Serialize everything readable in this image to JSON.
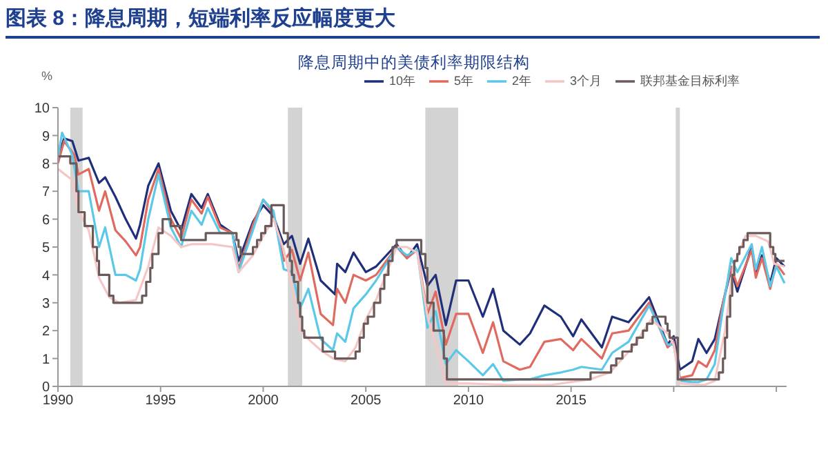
{
  "chart_data": {
    "type": "line",
    "title": "图表 8：降息周期，短端利率反应幅度更大",
    "subtitle": "降息周期中的美债利率期限结构",
    "ylabel": "%",
    "xlim": [
      1990,
      2025.5
    ],
    "xticks": [
      1990,
      1995,
      2000,
      2005,
      2010,
      2015,
      {
        "value": 2020,
        "label": null
      },
      {
        "value": 2025,
        "label": null
      }
    ],
    "ylim": [
      0,
      10
    ],
    "yticks": [
      0,
      1,
      2,
      3,
      4,
      5,
      6,
      7,
      8,
      9,
      10
    ],
    "grid": false,
    "legend": "top",
    "marker": "none",
    "line_style": "solid",
    "bands": [
      {
        "axis": "x",
        "from": 1990.6,
        "to": 1991.2,
        "color": "#d3d3d3"
      },
      {
        "axis": "x",
        "from": 2001.2,
        "to": 2001.9,
        "color": "#d3d3d3"
      },
      {
        "axis": "x",
        "from": 2007.9,
        "to": 2009.5,
        "color": "#d3d3d3"
      },
      {
        "axis": "x",
        "from": 2020.1,
        "to": 2020.3,
        "color": "#d3d3d3"
      }
    ],
    "series": [
      {
        "name": "10年",
        "color": "#1f2f7a",
        "x": [
          1990.0,
          1990.3,
          1990.7,
          1991.0,
          1991.5,
          1992.0,
          1992.3,
          1992.8,
          1993.3,
          1993.8,
          1994.0,
          1994.4,
          1994.9,
          1995.5,
          1996.0,
          1996.5,
          1997.0,
          1997.3,
          1997.9,
          1998.5,
          1998.8,
          1999.5,
          2000.0,
          2000.5,
          2001.0,
          2001.4,
          2001.8,
          2002.2,
          2002.8,
          2003.5,
          2003.6,
          2004.0,
          2004.4,
          2005.0,
          2005.5,
          2006.5,
          2007.0,
          2007.5,
          2008.0,
          2008.4,
          2008.9,
          2009.4,
          2010.0,
          2010.7,
          2011.2,
          2011.7,
          2012.5,
          2013.0,
          2013.7,
          2014.5,
          2015.1,
          2015.5,
          2016.5,
          2017.0,
          2017.8,
          2018.8,
          2019.7,
          2020.0,
          2020.3,
          2020.9,
          2021.2,
          2021.6,
          2022.0,
          2022.4,
          2022.8,
          2023.1,
          2023.8,
          2024.0,
          2024.3,
          2024.7,
          2025.0,
          2025.4
        ],
        "values": [
          8.2,
          8.9,
          8.8,
          8.1,
          8.2,
          7.3,
          7.5,
          6.8,
          6.0,
          5.3,
          5.8,
          7.2,
          8.0,
          6.3,
          5.6,
          6.9,
          6.4,
          6.9,
          5.8,
          5.5,
          4.5,
          5.9,
          6.5,
          6.1,
          5.1,
          5.4,
          4.4,
          5.3,
          3.8,
          3.3,
          4.4,
          4.1,
          4.8,
          4.1,
          4.3,
          5.1,
          4.6,
          5.1,
          3.6,
          4.0,
          2.2,
          3.8,
          3.8,
          2.5,
          3.5,
          2.0,
          1.5,
          1.9,
          2.9,
          2.5,
          1.8,
          2.4,
          1.4,
          2.5,
          2.3,
          3.2,
          1.5,
          1.8,
          0.6,
          0.9,
          1.7,
          1.2,
          1.7,
          3.0,
          4.2,
          3.4,
          5.0,
          4.0,
          4.7,
          3.7,
          4.6,
          4.3
        ]
      },
      {
        "name": "5年",
        "color": "#e06a5f",
        "x": [
          1990.0,
          1990.3,
          1990.8,
          1991.0,
          1991.5,
          1992.0,
          1992.3,
          1992.8,
          1993.3,
          1993.8,
          1994.0,
          1994.4,
          1994.9,
          1995.5,
          1996.0,
          1996.5,
          1997.0,
          1997.3,
          1997.9,
          1998.5,
          1998.8,
          1999.5,
          2000.0,
          2000.5,
          2001.0,
          2001.4,
          2001.8,
          2002.2,
          2002.8,
          2003.4,
          2003.6,
          2004.0,
          2004.4,
          2005.0,
          2005.5,
          2006.5,
          2007.0,
          2007.5,
          2008.0,
          2008.4,
          2008.9,
          2009.4,
          2010.0,
          2010.7,
          2011.2,
          2011.7,
          2012.5,
          2013.0,
          2013.7,
          2014.5,
          2015.1,
          2015.5,
          2016.5,
          2017.0,
          2017.8,
          2018.8,
          2019.7,
          2020.0,
          2020.3,
          2020.9,
          2021.2,
          2021.6,
          2022.0,
          2022.4,
          2022.8,
          2023.1,
          2023.8,
          2024.0,
          2024.3,
          2024.7,
          2025.0,
          2025.4
        ],
        "values": [
          8.0,
          8.8,
          8.3,
          7.6,
          7.8,
          6.3,
          7.0,
          5.6,
          5.2,
          4.7,
          5.0,
          6.7,
          7.8,
          6.0,
          5.3,
          6.7,
          6.2,
          6.8,
          5.7,
          5.5,
          4.2,
          5.8,
          6.7,
          6.2,
          4.5,
          4.9,
          3.8,
          4.8,
          2.6,
          2.2,
          3.5,
          3.0,
          4.0,
          3.8,
          4.0,
          5.0,
          4.6,
          4.9,
          2.6,
          3.4,
          1.5,
          2.6,
          2.6,
          1.2,
          2.3,
          0.9,
          0.6,
          0.7,
          1.6,
          1.7,
          1.3,
          1.7,
          1.0,
          1.9,
          2.0,
          3.0,
          1.4,
          1.6,
          0.3,
          0.4,
          0.9,
          0.7,
          1.3,
          3.0,
          4.3,
          3.6,
          4.9,
          3.9,
          4.6,
          3.5,
          4.4,
          4.0
        ]
      },
      {
        "name": "2年",
        "color": "#5bc8e8",
        "x": [
          1990.0,
          1990.2,
          1990.7,
          1991.0,
          1991.5,
          1992.0,
          1992.3,
          1992.8,
          1993.3,
          1993.8,
          1994.0,
          1994.4,
          1994.9,
          1995.5,
          1996.0,
          1996.5,
          1997.0,
          1997.3,
          1997.9,
          1998.5,
          1998.8,
          1999.5,
          2000.0,
          2000.5,
          2001.0,
          2001.4,
          2001.8,
          2002.2,
          2002.8,
          2003.4,
          2003.6,
          2004.0,
          2004.4,
          2005.0,
          2005.5,
          2006.5,
          2007.0,
          2007.5,
          2008.0,
          2008.4,
          2008.9,
          2009.4,
          2010.0,
          2010.7,
          2011.2,
          2011.7,
          2012.5,
          2013.0,
          2013.7,
          2014.5,
          2015.1,
          2015.5,
          2016.5,
          2017.0,
          2017.8,
          2018.8,
          2019.7,
          2020.0,
          2020.3,
          2020.9,
          2021.2,
          2021.6,
          2022.0,
          2022.4,
          2022.8,
          2023.1,
          2023.8,
          2024.0,
          2024.3,
          2024.7,
          2025.0,
          2025.4
        ],
        "values": [
          8.2,
          9.1,
          8.3,
          7.0,
          7.0,
          5.0,
          5.7,
          4.0,
          4.0,
          3.8,
          4.2,
          6.0,
          7.6,
          5.7,
          5.0,
          6.3,
          5.8,
          6.4,
          5.5,
          5.5,
          4.1,
          5.6,
          6.7,
          6.3,
          4.2,
          4.1,
          2.8,
          3.5,
          1.7,
          1.3,
          1.9,
          1.6,
          2.8,
          3.3,
          3.8,
          5.0,
          4.7,
          4.9,
          2.1,
          2.7,
          0.8,
          1.3,
          0.9,
          0.4,
          0.8,
          0.2,
          0.25,
          0.25,
          0.4,
          0.5,
          0.6,
          0.7,
          0.6,
          1.2,
          1.6,
          2.9,
          1.5,
          1.5,
          0.2,
          0.15,
          0.15,
          0.25,
          0.8,
          2.8,
          4.6,
          4.1,
          5.1,
          4.2,
          5.0,
          3.6,
          4.3,
          3.7
        ]
      },
      {
        "name": "3个月",
        "color": "#f5c6c6",
        "x": [
          1990.0,
          1990.7,
          1991.0,
          1991.5,
          1992.0,
          1992.5,
          1993.0,
          1993.8,
          1994.4,
          1994.9,
          1995.5,
          1996.0,
          1996.5,
          1997.5,
          1998.5,
          1998.8,
          1999.5,
          2000.0,
          2000.5,
          2001.0,
          2001.4,
          2001.8,
          2002.2,
          2002.8,
          2003.4,
          2004.0,
          2004.5,
          2005.0,
          2005.5,
          2006.5,
          2007.0,
          2007.5,
          2008.0,
          2008.4,
          2008.9,
          2010.0,
          2012.0,
          2014.0,
          2015.9,
          2016.9,
          2017.5,
          2018.0,
          2018.9,
          2019.7,
          2020.0,
          2020.3,
          2021.5,
          2022.0,
          2022.5,
          2022.9,
          2023.5,
          2024.0,
          2024.6,
          2024.9,
          2025.4
        ],
        "values": [
          7.8,
          7.4,
          6.3,
          5.6,
          3.9,
          3.2,
          3.0,
          3.1,
          4.3,
          5.7,
          5.4,
          5.0,
          5.1,
          5.1,
          5.0,
          4.1,
          4.7,
          5.4,
          6.0,
          4.9,
          3.6,
          2.0,
          1.7,
          1.3,
          1.0,
          0.9,
          1.4,
          2.4,
          3.1,
          5.0,
          5.0,
          4.8,
          2.5,
          1.5,
          0.1,
          0.1,
          0.05,
          0.05,
          0.25,
          0.5,
          1.0,
          1.4,
          2.4,
          1.9,
          1.5,
          0.1,
          0.05,
          0.2,
          2.0,
          4.3,
          5.4,
          5.4,
          5.2,
          4.4,
          4.3
        ]
      },
      {
        "name": "联邦基金目标利率",
        "type": "step",
        "color": "#6b5a5a",
        "x": [
          1990.0,
          1990.6,
          1990.9,
          1991.0,
          1991.3,
          1991.7,
          1991.9,
          1992.0,
          1992.5,
          1992.7,
          1994.1,
          1994.3,
          1994.5,
          1994.6,
          1994.9,
          1995.1,
          1995.5,
          1996.0,
          1997.2,
          1998.7,
          1998.8,
          1998.9,
          1999.5,
          1999.7,
          1999.9,
          2000.1,
          2000.4,
          2001.0,
          2001.2,
          2001.3,
          2001.4,
          2001.5,
          2001.7,
          2001.8,
          2001.9,
          2002.0,
          2002.9,
          2003.5,
          2004.5,
          2004.7,
          2004.9,
          2005.1,
          2005.4,
          2005.7,
          2005.9,
          2006.1,
          2006.3,
          2006.5,
          2007.7,
          2007.9,
          2008.0,
          2008.3,
          2008.8,
          2008.95,
          2015.95,
          2016.95,
          2017.2,
          2017.5,
          2017.95,
          2018.2,
          2018.5,
          2018.7,
          2018.97,
          2019.6,
          2019.7,
          2019.8,
          2020.2,
          2022.2,
          2022.4,
          2022.5,
          2022.6,
          2022.75,
          2022.85,
          2022.95,
          2023.1,
          2023.2,
          2023.4,
          2023.6,
          2024.7,
          2024.85,
          2024.95,
          2025.4
        ],
        "values": [
          8.25,
          8.0,
          7.0,
          6.25,
          5.75,
          5.0,
          4.5,
          4.0,
          3.25,
          3.0,
          3.25,
          3.75,
          4.25,
          4.75,
          5.5,
          6.0,
          5.75,
          5.25,
          5.5,
          5.25,
          5.0,
          4.75,
          5.0,
          5.25,
          5.5,
          5.75,
          6.5,
          5.5,
          5.0,
          4.5,
          4.0,
          3.75,
          3.0,
          2.5,
          2.0,
          1.75,
          1.25,
          1.0,
          1.25,
          1.75,
          2.25,
          2.5,
          3.0,
          3.5,
          4.0,
          4.5,
          5.0,
          5.25,
          4.75,
          4.25,
          3.0,
          2.0,
          1.0,
          0.25,
          0.5,
          0.75,
          1.0,
          1.25,
          1.5,
          1.75,
          2.0,
          2.25,
          2.5,
          2.25,
          2.0,
          1.75,
          0.25,
          0.5,
          1.0,
          1.75,
          2.5,
          3.25,
          4.0,
          4.5,
          4.75,
          5.0,
          5.25,
          5.5,
          5.0,
          4.75,
          4.5,
          4.5
        ]
      }
    ]
  }
}
